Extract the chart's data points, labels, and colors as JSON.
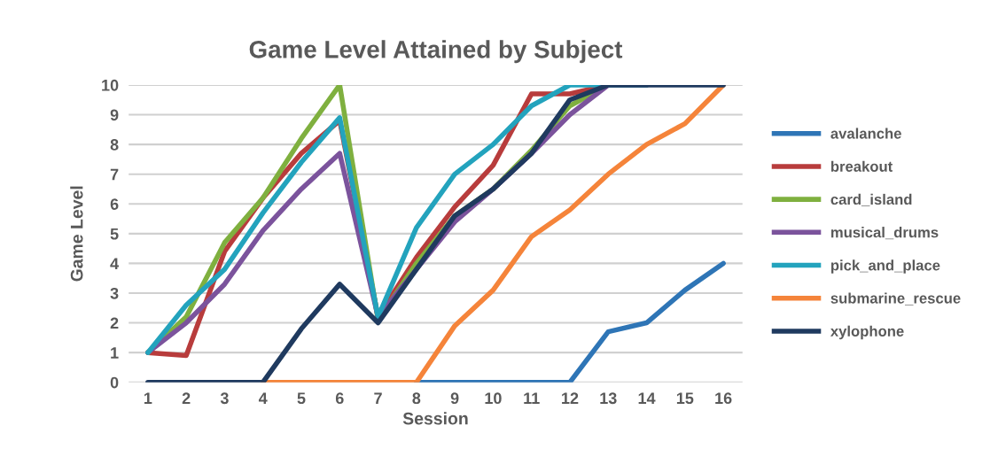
{
  "chart_data": {
    "type": "line",
    "title": "Game Level Attained by Subject",
    "xlabel": "Session",
    "ylabel": "Game Level",
    "categories": [
      "1",
      "2",
      "3",
      "4",
      "5",
      "6",
      "7",
      "8",
      "9",
      "10",
      "11",
      "12",
      "13",
      "14",
      "15",
      "16"
    ],
    "ylim": [
      0,
      10
    ],
    "yticks": [
      0,
      1,
      2,
      3,
      4,
      5,
      6,
      7,
      8,
      9,
      10
    ],
    "grid": "y",
    "legend": "right",
    "marker": "none",
    "line_style": "solid",
    "series": [
      {
        "name": "avalanche",
        "color": "#2e75b6",
        "values": [
          null,
          null,
          null,
          null,
          null,
          null,
          null,
          0,
          0,
          0,
          0,
          0,
          1.7,
          2,
          3.1,
          4
        ]
      },
      {
        "name": "breakout",
        "color": "#b83c3c",
        "values": [
          1,
          0.9,
          4.4,
          6.2,
          7.7,
          8.8,
          2.2,
          4.2,
          5.9,
          7.3,
          9.7,
          9.7,
          10,
          null,
          null,
          null
        ]
      },
      {
        "name": "card_island",
        "color": "#7fb03f",
        "values": [
          1,
          2.2,
          4.7,
          6.2,
          8.2,
          10,
          2.1,
          4,
          5.6,
          6.5,
          7.8,
          9.3,
          10,
          10,
          null,
          null
        ]
      },
      {
        "name": "musical_drums",
        "color": "#7b539c",
        "values": [
          1,
          2,
          3.3,
          5.1,
          6.5,
          7.7,
          2.2,
          3.8,
          5.4,
          6.5,
          7.7,
          9,
          10,
          10,
          null,
          null
        ]
      },
      {
        "name": "pick_and_place",
        "color": "#23a3bd",
        "values": [
          1,
          2.6,
          3.8,
          5.7,
          7.4,
          8.9,
          2.2,
          5.2,
          7,
          8,
          9.3,
          10,
          10,
          10,
          null,
          null
        ]
      },
      {
        "name": "submarine_rescue",
        "color": "#f5843a",
        "values": [
          null,
          null,
          null,
          0,
          0,
          0,
          0,
          0,
          1.9,
          3.1,
          4.9,
          5.8,
          7,
          8,
          8.7,
          10
        ]
      },
      {
        "name": "xylophone",
        "color": "#1f3a5f",
        "values": [
          0,
          0,
          0,
          0,
          1.8,
          3.3,
          2,
          3.8,
          5.6,
          6.5,
          7.7,
          9.5,
          10,
          10,
          10,
          10
        ]
      }
    ]
  }
}
